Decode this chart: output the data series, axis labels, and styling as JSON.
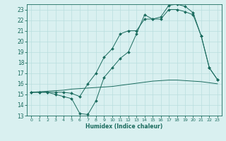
{
  "line1_x": [
    0,
    1,
    2,
    3,
    4,
    5,
    6,
    7,
    8,
    9,
    10,
    11,
    12,
    13,
    14,
    15,
    16,
    17,
    18,
    19,
    20,
    21,
    22,
    23
  ],
  "line1_y": [
    15.2,
    15.2,
    15.2,
    15.0,
    14.8,
    14.6,
    13.2,
    13.1,
    14.4,
    16.6,
    17.5,
    18.4,
    19.0,
    20.7,
    22.5,
    22.1,
    22.1,
    23.0,
    23.0,
    22.8,
    22.5,
    20.5,
    17.5,
    16.4
  ],
  "line2_x": [
    0,
    1,
    2,
    3,
    4,
    5,
    6,
    7,
    8,
    9,
    10,
    11,
    12,
    13,
    14,
    15,
    16,
    17,
    18,
    19,
    20,
    21,
    22,
    23
  ],
  "line2_y": [
    15.2,
    15.25,
    15.3,
    15.35,
    15.4,
    15.5,
    15.55,
    15.6,
    15.65,
    15.7,
    15.75,
    15.85,
    15.95,
    16.05,
    16.15,
    16.25,
    16.3,
    16.35,
    16.35,
    16.3,
    16.25,
    16.2,
    16.1,
    16.0
  ],
  "line3_x": [
    0,
    1,
    2,
    3,
    4,
    5,
    6,
    7,
    8,
    9,
    10,
    11,
    12,
    13,
    14,
    15,
    16,
    17,
    18,
    19,
    20,
    21,
    22,
    23
  ],
  "line3_y": [
    15.2,
    15.2,
    15.2,
    15.2,
    15.2,
    15.1,
    14.8,
    16.0,
    17.0,
    18.5,
    19.3,
    20.7,
    21.0,
    21.0,
    22.1,
    22.1,
    22.3,
    23.4,
    23.5,
    23.3,
    22.7,
    20.5,
    17.5,
    16.4
  ],
  "line_color": "#1a6b5e",
  "bg_color": "#d9f0f0",
  "grid_color": "#b8dede",
  "xlabel": "Humidex (Indice chaleur)",
  "xlim": [
    -0.5,
    23.5
  ],
  "ylim": [
    13,
    23.5
  ],
  "yticks": [
    13,
    14,
    15,
    16,
    17,
    18,
    19,
    20,
    21,
    22,
    23
  ],
  "xticks": [
    0,
    1,
    2,
    3,
    4,
    5,
    6,
    7,
    8,
    9,
    10,
    11,
    12,
    13,
    14,
    15,
    16,
    17,
    18,
    19,
    20,
    21,
    22,
    23
  ]
}
